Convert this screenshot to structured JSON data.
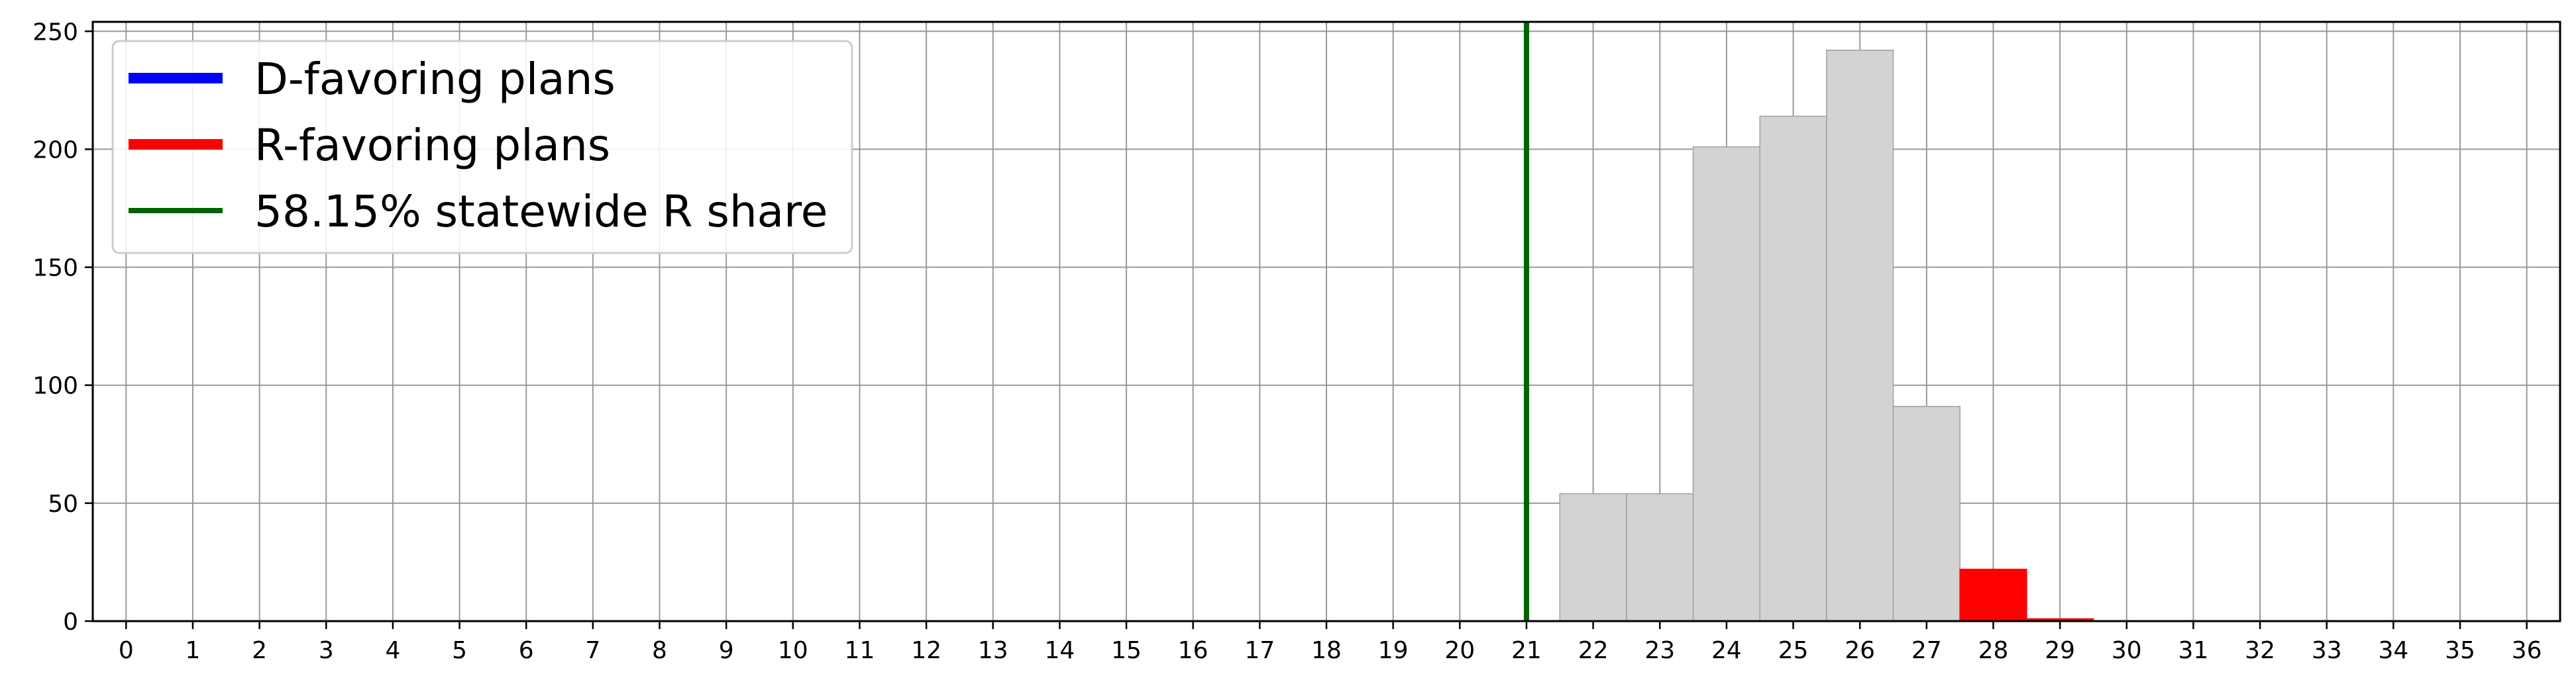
{
  "chart_data": {
    "type": "bar",
    "title": "",
    "xlabel": "",
    "ylabel": "",
    "xlim": [
      -0.5,
      36.5
    ],
    "ylim": [
      0,
      254
    ],
    "x_ticks": [
      "0",
      "1",
      "2",
      "3",
      "4",
      "5",
      "6",
      "7",
      "8",
      "9",
      "10",
      "11",
      "12",
      "13",
      "14",
      "15",
      "16",
      "17",
      "18",
      "19",
      "20",
      "21",
      "22",
      "23",
      "24",
      "25",
      "26",
      "27",
      "28",
      "29",
      "30",
      "31",
      "32",
      "33",
      "34",
      "35",
      "36"
    ],
    "y_ticks": [
      0,
      50,
      100,
      150,
      200,
      250
    ],
    "grid": true,
    "legend_position": "top-left",
    "bars": [
      {
        "x": 22,
        "value": 54,
        "group": "neutral"
      },
      {
        "x": 23,
        "value": 54,
        "group": "neutral"
      },
      {
        "x": 24,
        "value": 201,
        "group": "neutral"
      },
      {
        "x": 25,
        "value": 214,
        "group": "neutral"
      },
      {
        "x": 26,
        "value": 242,
        "group": "neutral"
      },
      {
        "x": 27,
        "value": 91,
        "group": "neutral"
      },
      {
        "x": 28,
        "value": 22,
        "group": "r"
      },
      {
        "x": 29,
        "value": 1,
        "group": "r"
      }
    ],
    "vline": {
      "x": 21,
      "color": "#006400"
    },
    "legend": [
      {
        "label": "D-favoring plans",
        "color": "#0000ff",
        "kind": "thick"
      },
      {
        "label": "R-favoring plans",
        "color": "#ff0000",
        "kind": "thick"
      },
      {
        "label": "58.15% statewide R share",
        "color": "#006400",
        "kind": "thin"
      }
    ],
    "colors": {
      "neutral": "#d3d3d3",
      "neutral_edge": "#a0a0a0",
      "r": "#ff0000",
      "grid": "#999999",
      "axis": "#000000"
    }
  }
}
